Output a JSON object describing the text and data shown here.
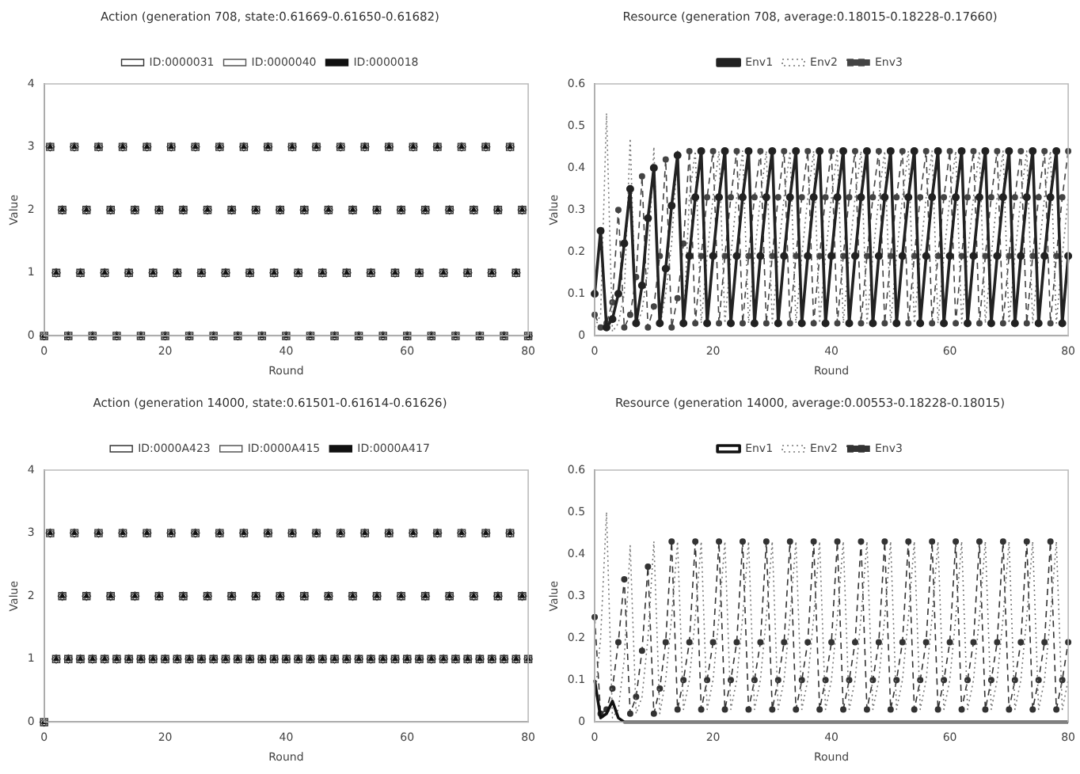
{
  "chart_data": [
    {
      "type": "scatter",
      "title": "Action (generation 708, state:0.61669-0.61650-0.61682)",
      "xlabel": "Round",
      "ylabel": "Value",
      "xlim": [
        0,
        80
      ],
      "xticks": [
        0,
        20,
        40,
        60,
        80
      ],
      "ylim": [
        0,
        4
      ],
      "yticks": [
        0,
        1,
        2,
        3,
        4
      ],
      "grid": false,
      "legend": "top",
      "x": [
        0,
        1,
        2,
        3,
        4,
        5,
        6,
        7,
        8,
        9,
        10,
        11,
        12,
        13,
        14,
        15,
        16,
        17,
        18,
        19,
        20,
        21,
        22,
        23,
        24,
        25,
        26,
        27,
        28,
        29,
        30,
        31,
        32,
        33,
        34,
        35,
        36,
        37,
        38,
        39,
        40,
        41,
        42,
        43,
        44,
        45,
        46,
        47,
        48,
        49,
        50,
        51,
        52,
        53,
        54,
        55,
        56,
        57,
        58,
        59,
        60,
        61,
        62,
        63,
        64,
        65,
        66,
        67,
        68,
        69,
        70,
        71,
        72,
        73,
        74,
        75,
        76,
        77,
        78,
        79,
        80
      ],
      "series": [
        {
          "name": "ID:0000031",
          "color": "#333333",
          "marker": "square",
          "values": [
            0,
            3,
            1,
            2,
            0,
            3,
            1,
            2,
            0,
            3,
            1,
            2,
            0,
            3,
            1,
            2,
            0,
            3,
            1,
            2,
            0,
            3,
            1,
            2,
            0,
            3,
            1,
            2,
            0,
            3,
            1,
            2,
            0,
            3,
            1,
            2,
            0,
            3,
            1,
            2,
            0,
            3,
            1,
            2,
            0,
            3,
            1,
            2,
            0,
            3,
            1,
            2,
            0,
            3,
            1,
            2,
            0,
            3,
            1,
            2,
            0,
            3,
            1,
            2,
            0,
            3,
            1,
            2,
            0,
            3,
            1,
            2,
            0,
            3,
            1,
            2,
            0,
            3,
            1,
            2,
            0
          ]
        },
        {
          "name": "ID:0000040",
          "color": "#555555",
          "marker": "diamond",
          "values": [
            0,
            3,
            1,
            2,
            0,
            3,
            1,
            2,
            0,
            3,
            1,
            2,
            0,
            3,
            1,
            2,
            0,
            3,
            1,
            2,
            0,
            3,
            1,
            2,
            0,
            3,
            1,
            2,
            0,
            3,
            1,
            2,
            0,
            3,
            1,
            2,
            0,
            3,
            1,
            2,
            0,
            3,
            1,
            2,
            0,
            3,
            1,
            2,
            0,
            3,
            1,
            2,
            0,
            3,
            1,
            2,
            0,
            3,
            1,
            2,
            0,
            3,
            1,
            2,
            0,
            3,
            1,
            2,
            0,
            3,
            1,
            2,
            0,
            3,
            1,
            2,
            0,
            3,
            1,
            2,
            0
          ]
        },
        {
          "name": "ID:0000018",
          "color": "#111111",
          "marker": "triangle",
          "values": [
            0,
            3,
            1,
            2,
            0,
            3,
            1,
            2,
            0,
            3,
            1,
            2,
            0,
            3,
            1,
            2,
            0,
            3,
            1,
            2,
            0,
            3,
            1,
            2,
            0,
            3,
            1,
            2,
            0,
            3,
            1,
            2,
            0,
            3,
            1,
            2,
            0,
            3,
            1,
            2,
            0,
            3,
            1,
            2,
            0,
            3,
            1,
            2,
            0,
            3,
            1,
            2,
            0,
            3,
            1,
            2,
            0,
            3,
            1,
            2,
            0,
            3,
            1,
            2,
            0,
            3,
            1,
            2,
            0,
            3,
            1,
            2,
            0,
            3,
            1,
            2,
            0,
            3,
            1,
            2,
            0
          ]
        }
      ]
    },
    {
      "type": "line",
      "title": "Resource (generation 708, average:0.18015-0.18228-0.17660)",
      "xlabel": "Round",
      "ylabel": "Value",
      "xlim": [
        0,
        80
      ],
      "xticks": [
        0,
        20,
        40,
        60,
        80
      ],
      "ylim": [
        0,
        0.6
      ],
      "yticks": [
        0,
        0.1,
        0.2,
        0.3,
        0.4,
        0.5,
        0.6
      ],
      "grid": false,
      "legend": "top",
      "x": [
        0,
        1,
        2,
        3,
        4,
        5,
        6,
        7,
        8,
        9,
        10,
        11,
        12,
        13,
        14,
        15,
        16,
        17,
        18,
        19,
        20,
        21,
        22,
        23,
        24,
        25,
        26,
        27,
        28,
        29,
        30,
        31,
        32,
        33,
        34,
        35,
        36,
        37,
        38,
        39,
        40,
        41,
        42,
        43,
        44,
        45,
        46,
        47,
        48,
        49,
        50,
        51,
        52,
        53,
        54,
        55,
        56,
        57,
        58,
        59,
        60,
        61,
        62,
        63,
        64,
        65,
        66,
        67,
        68,
        69,
        70,
        71,
        72,
        73,
        74,
        75,
        76,
        77,
        78,
        79,
        80
      ],
      "series": [
        {
          "name": "Env1",
          "color": "#222222",
          "marker": "circle",
          "line_style": "solid",
          "values": [
            0.1,
            0.25,
            0.02,
            0.04,
            0.1,
            0.22,
            0.35,
            0.03,
            0.12,
            0.28,
            0.4,
            0.03,
            0.16,
            0.31,
            0.43,
            0.03,
            0.19,
            0.33,
            0.44,
            0.03,
            0.19,
            0.33,
            0.44,
            0.03,
            0.19,
            0.33,
            0.44,
            0.03,
            0.19,
            0.33,
            0.44,
            0.03,
            0.19,
            0.33,
            0.44,
            0.03,
            0.19,
            0.33,
            0.44,
            0.03,
            0.19,
            0.33,
            0.44,
            0.03,
            0.19,
            0.33,
            0.44,
            0.03,
            0.19,
            0.33,
            0.44,
            0.03,
            0.19,
            0.33,
            0.44,
            0.03,
            0.19,
            0.33,
            0.44,
            0.03,
            0.19,
            0.33,
            0.44,
            0.03,
            0.19,
            0.33,
            0.44,
            0.03,
            0.19,
            0.33,
            0.44,
            0.03,
            0.19,
            0.33,
            0.44,
            0.03,
            0.19,
            0.33,
            0.44,
            0.03,
            0.19
          ]
        },
        {
          "name": "Env2",
          "color": "#777777",
          "marker": "none",
          "line_style": "dotted",
          "values": [
            0.02,
            0.05,
            0.53,
            0.01,
            0.03,
            0.1,
            0.47,
            0.02,
            0.06,
            0.16,
            0.45,
            0.02,
            0.1,
            0.22,
            0.44,
            0.02,
            0.33,
            0.44,
            0.03,
            0.19,
            0.33,
            0.44,
            0.03,
            0.19,
            0.33,
            0.44,
            0.03,
            0.19,
            0.33,
            0.44,
            0.03,
            0.19,
            0.33,
            0.44,
            0.03,
            0.19,
            0.33,
            0.44,
            0.03,
            0.19,
            0.33,
            0.44,
            0.03,
            0.19,
            0.33,
            0.44,
            0.03,
            0.19,
            0.33,
            0.44,
            0.03,
            0.19,
            0.33,
            0.44,
            0.03,
            0.19,
            0.33,
            0.44,
            0.03,
            0.19,
            0.33,
            0.44,
            0.03,
            0.19,
            0.33,
            0.44,
            0.03,
            0.19,
            0.33,
            0.44,
            0.03,
            0.19,
            0.33,
            0.44,
            0.03,
            0.19,
            0.33,
            0.44,
            0.03,
            0.19,
            0.33
          ]
        },
        {
          "name": "Env3",
          "color": "#444444",
          "marker": "circle",
          "line_style": "dashed",
          "values": [
            0.05,
            0.02,
            0.03,
            0.08,
            0.3,
            0.02,
            0.05,
            0.14,
            0.38,
            0.02,
            0.07,
            0.19,
            0.42,
            0.02,
            0.09,
            0.22,
            0.44,
            0.03,
            0.19,
            0.33,
            0.44,
            0.03,
            0.19,
            0.33,
            0.44,
            0.03,
            0.19,
            0.33,
            0.44,
            0.03,
            0.19,
            0.33,
            0.44,
            0.03,
            0.19,
            0.33,
            0.44,
            0.03,
            0.19,
            0.33,
            0.44,
            0.03,
            0.19,
            0.33,
            0.44,
            0.03,
            0.19,
            0.33,
            0.44,
            0.03,
            0.19,
            0.33,
            0.44,
            0.03,
            0.19,
            0.33,
            0.44,
            0.03,
            0.19,
            0.33,
            0.44,
            0.03,
            0.19,
            0.33,
            0.44,
            0.03,
            0.19,
            0.33,
            0.44,
            0.03,
            0.19,
            0.33,
            0.44,
            0.03,
            0.19,
            0.33,
            0.44,
            0.03,
            0.19,
            0.33,
            0.44
          ]
        }
      ]
    },
    {
      "type": "scatter",
      "title": "Action (generation 14000, state:0.61501-0.61614-0.61626)",
      "xlabel": "Round",
      "ylabel": "Value",
      "xlim": [
        0,
        80
      ],
      "xticks": [
        0,
        20,
        40,
        60,
        80
      ],
      "ylim": [
        0,
        4
      ],
      "yticks": [
        0,
        1,
        2,
        3,
        4
      ],
      "grid": false,
      "legend": "top",
      "x": [
        0,
        1,
        2,
        3,
        4,
        5,
        6,
        7,
        8,
        9,
        10,
        11,
        12,
        13,
        14,
        15,
        16,
        17,
        18,
        19,
        20,
        21,
        22,
        23,
        24,
        25,
        26,
        27,
        28,
        29,
        30,
        31,
        32,
        33,
        34,
        35,
        36,
        37,
        38,
        39,
        40,
        41,
        42,
        43,
        44,
        45,
        46,
        47,
        48,
        49,
        50,
        51,
        52,
        53,
        54,
        55,
        56,
        57,
        58,
        59,
        60,
        61,
        62,
        63,
        64,
        65,
        66,
        67,
        68,
        69,
        70,
        71,
        72,
        73,
        74,
        75,
        76,
        77,
        78,
        79,
        80
      ],
      "series": [
        {
          "name": "ID:0000A423",
          "color": "#333333",
          "marker": "square",
          "values": [
            0,
            3,
            1,
            2,
            1,
            3,
            1,
            2,
            1,
            3,
            1,
            2,
            1,
            3,
            1,
            2,
            1,
            3,
            1,
            2,
            1,
            3,
            1,
            2,
            1,
            3,
            1,
            2,
            1,
            3,
            1,
            2,
            1,
            3,
            1,
            2,
            1,
            3,
            1,
            2,
            1,
            3,
            1,
            2,
            1,
            3,
            1,
            2,
            1,
            3,
            1,
            2,
            1,
            3,
            1,
            2,
            1,
            3,
            1,
            2,
            1,
            3,
            1,
            2,
            1,
            3,
            1,
            2,
            1,
            3,
            1,
            2,
            1,
            3,
            1,
            2,
            1,
            3,
            1,
            2,
            1
          ]
        },
        {
          "name": "ID:0000A415",
          "color": "#555555",
          "marker": "diamond",
          "values": [
            0,
            3,
            1,
            2,
            1,
            3,
            1,
            2,
            1,
            3,
            1,
            2,
            1,
            3,
            1,
            2,
            1,
            3,
            1,
            2,
            1,
            3,
            1,
            2,
            1,
            3,
            1,
            2,
            1,
            3,
            1,
            2,
            1,
            3,
            1,
            2,
            1,
            3,
            1,
            2,
            1,
            3,
            1,
            2,
            1,
            3,
            1,
            2,
            1,
            3,
            1,
            2,
            1,
            3,
            1,
            2,
            1,
            3,
            1,
            2,
            1,
            3,
            1,
            2,
            1,
            3,
            1,
            2,
            1,
            3,
            1,
            2,
            1,
            3,
            1,
            2,
            1,
            3,
            1,
            2,
            1
          ]
        },
        {
          "name": "ID:0000A417",
          "color": "#111111",
          "marker": "triangle",
          "values": [
            0,
            3,
            1,
            2,
            1,
            3,
            1,
            2,
            1,
            3,
            1,
            2,
            1,
            3,
            1,
            2,
            1,
            3,
            1,
            2,
            1,
            3,
            1,
            2,
            1,
            3,
            1,
            2,
            1,
            3,
            1,
            2,
            1,
            3,
            1,
            2,
            1,
            3,
            1,
            2,
            1,
            3,
            1,
            2,
            1,
            3,
            1,
            2,
            1,
            3,
            1,
            2,
            1,
            3,
            1,
            2,
            1,
            3,
            1,
            2,
            1,
            3,
            1,
            2,
            1,
            3,
            1,
            2,
            1,
            3,
            1,
            2,
            1,
            3,
            1,
            2,
            1,
            3,
            1,
            2,
            1
          ]
        }
      ]
    },
    {
      "type": "line",
      "title": "Resource (generation 14000, average:0.00553-0.18228-0.18015)",
      "xlabel": "Round",
      "ylabel": "Value",
      "xlim": [
        0,
        80
      ],
      "xticks": [
        0,
        20,
        40,
        60,
        80
      ],
      "ylim": [
        0,
        0.6
      ],
      "yticks": [
        0,
        0.1,
        0.2,
        0.3,
        0.4,
        0.5,
        0.6
      ],
      "grid": false,
      "legend": "top",
      "x": [
        0,
        1,
        2,
        3,
        4,
        5,
        6,
        7,
        8,
        9,
        10,
        11,
        12,
        13,
        14,
        15,
        16,
        17,
        18,
        19,
        20,
        21,
        22,
        23,
        24,
        25,
        26,
        27,
        28,
        29,
        30,
        31,
        32,
        33,
        34,
        35,
        36,
        37,
        38,
        39,
        40,
        41,
        42,
        43,
        44,
        45,
        46,
        47,
        48,
        49,
        50,
        51,
        52,
        53,
        54,
        55,
        56,
        57,
        58,
        59,
        60,
        61,
        62,
        63,
        64,
        65,
        66,
        67,
        68,
        69,
        70,
        71,
        72,
        73,
        74,
        75,
        76,
        77,
        78,
        79,
        80
      ],
      "series": [
        {
          "name": "Env1",
          "color": "#111111",
          "marker": "none",
          "line_style": "solid",
          "values": [
            0.1,
            0.01,
            0.02,
            0.05,
            0.01,
            0,
            0,
            0,
            0,
            0,
            0,
            0,
            0,
            0,
            0,
            0,
            0,
            0,
            0,
            0,
            0,
            0,
            0,
            0,
            0,
            0,
            0,
            0,
            0,
            0,
            0,
            0,
            0,
            0,
            0,
            0,
            0,
            0,
            0,
            0,
            0,
            0,
            0,
            0,
            0,
            0,
            0,
            0,
            0,
            0,
            0,
            0,
            0,
            0,
            0,
            0,
            0,
            0,
            0,
            0,
            0,
            0,
            0,
            0,
            0,
            0,
            0,
            0,
            0,
            0,
            0,
            0,
            0,
            0,
            0,
            0,
            0,
            0,
            0,
            0,
            0
          ]
        },
        {
          "name": "Env2",
          "color": "#777777",
          "marker": "none",
          "line_style": "dotted",
          "values": [
            0.05,
            0.2,
            0.5,
            0.01,
            0.03,
            0.15,
            0.42,
            0.02,
            0.06,
            0.2,
            0.43,
            0.02,
            0.1,
            0.25,
            0.43,
            0.03,
            0.1,
            0.25,
            0.43,
            0.03,
            0.1,
            0.25,
            0.43,
            0.03,
            0.1,
            0.25,
            0.43,
            0.03,
            0.1,
            0.25,
            0.43,
            0.03,
            0.1,
            0.25,
            0.43,
            0.03,
            0.1,
            0.25,
            0.43,
            0.03,
            0.1,
            0.25,
            0.43,
            0.03,
            0.1,
            0.25,
            0.43,
            0.03,
            0.1,
            0.25,
            0.43,
            0.03,
            0.1,
            0.25,
            0.43,
            0.03,
            0.1,
            0.25,
            0.43,
            0.03,
            0.1,
            0.25,
            0.43,
            0.03,
            0.1,
            0.25,
            0.43,
            0.03,
            0.1,
            0.25,
            0.43,
            0.03,
            0.1,
            0.25,
            0.43,
            0.03,
            0.1,
            0.25,
            0.43,
            0.03,
            0.1
          ]
        },
        {
          "name": "Env3",
          "color": "#333333",
          "marker": "circle",
          "line_style": "dashed",
          "values": [
            0.25,
            0.02,
            0.03,
            0.08,
            0.19,
            0.34,
            0.02,
            0.06,
            0.17,
            0.37,
            0.02,
            0.08,
            0.19,
            0.43,
            0.03,
            0.1,
            0.19,
            0.43,
            0.03,
            0.1,
            0.19,
            0.43,
            0.03,
            0.1,
            0.19,
            0.43,
            0.03,
            0.1,
            0.19,
            0.43,
            0.03,
            0.1,
            0.19,
            0.43,
            0.03,
            0.1,
            0.19,
            0.43,
            0.03,
            0.1,
            0.19,
            0.43,
            0.03,
            0.1,
            0.19,
            0.43,
            0.03,
            0.1,
            0.19,
            0.43,
            0.03,
            0.1,
            0.19,
            0.43,
            0.03,
            0.1,
            0.19,
            0.43,
            0.03,
            0.1,
            0.19,
            0.43,
            0.03,
            0.1,
            0.19,
            0.43,
            0.03,
            0.1,
            0.19,
            0.43,
            0.03,
            0.1,
            0.19,
            0.43,
            0.03,
            0.1,
            0.19,
            0.43,
            0.03,
            0.1,
            0.19
          ]
        }
      ]
    }
  ]
}
